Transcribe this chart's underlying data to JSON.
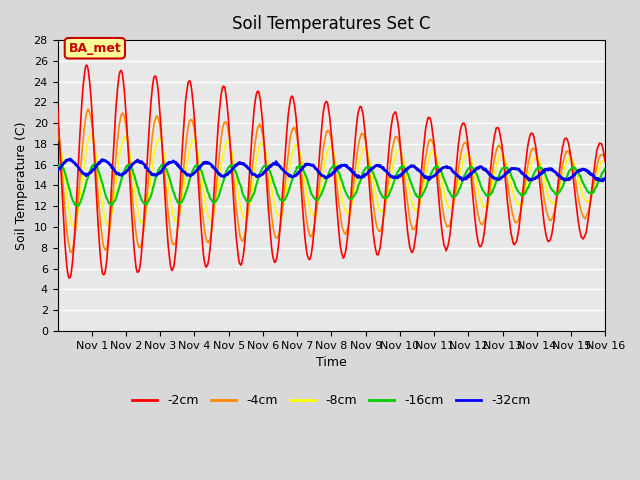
{
  "title": "Soil Temperatures Set C",
  "xlabel": "Time",
  "ylabel": "Soil Temperature (C)",
  "ylim": [
    0,
    28
  ],
  "yticks": [
    0,
    2,
    4,
    6,
    8,
    10,
    12,
    14,
    16,
    18,
    20,
    22,
    24,
    26,
    28
  ],
  "xtick_labels": [
    "Nov 1",
    "Nov 2",
    "Nov 3",
    "Nov 4",
    "Nov 5",
    "Nov 6",
    "Nov 7",
    "Nov 8",
    "Nov 9",
    "Nov 10",
    "Nov 11",
    "Nov 12",
    "Nov 13",
    "Nov 14",
    "Nov 15",
    "Nov 16"
  ],
  "legend_labels": [
    "-2cm",
    "-4cm",
    "-8cm",
    "-16cm",
    "-32cm"
  ],
  "legend_colors": [
    "#ff0000",
    "#ff8800",
    "#ffff00",
    "#00cc00",
    "#0000ff"
  ],
  "annotation_text": "BA_met",
  "annotation_color": "#cc0000",
  "annotation_bg": "#ffff99",
  "n_days": 16,
  "points_per_day": 48
}
